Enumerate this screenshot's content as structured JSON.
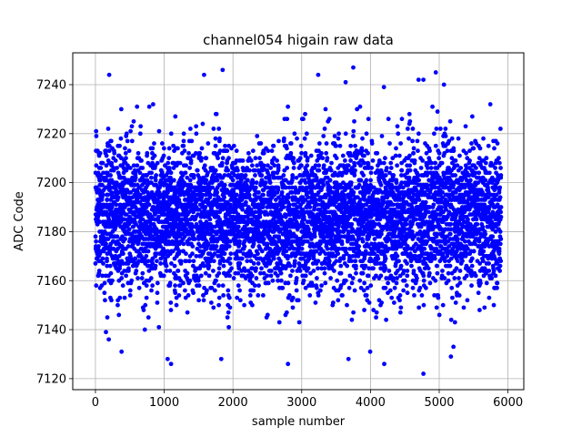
{
  "chart_data": {
    "type": "scatter",
    "title": "channel054 higain raw data",
    "xlabel": "sample number",
    "ylabel": "ADC Code",
    "xlim": [
      -330,
      6230
    ],
    "ylim": [
      7115.5,
      7253
    ],
    "x_ticks": [
      0,
      1000,
      2000,
      3000,
      4000,
      5000,
      6000
    ],
    "y_ticks": [
      7120,
      7140,
      7160,
      7180,
      7200,
      7220,
      7240
    ],
    "grid": true,
    "legend": "none",
    "series": [
      {
        "color": "#0000ff",
        "marker": "circle",
        "x_range": [
          0,
          5900
        ],
        "count": 5900,
        "mean": 7186,
        "std": 15,
        "notable_points": [
          {
            "x": 200,
            "y": 7244
          },
          {
            "x": 1850,
            "y": 7246
          },
          {
            "x": 3750,
            "y": 7247
          },
          {
            "x": 1580,
            "y": 7244
          },
          {
            "x": 4700,
            "y": 7242
          },
          {
            "x": 4770,
            "y": 7242
          },
          {
            "x": 3240,
            "y": 7244
          },
          {
            "x": 4770,
            "y": 7122
          },
          {
            "x": 1100,
            "y": 7126
          },
          {
            "x": 2800,
            "y": 7126
          },
          {
            "x": 4200,
            "y": 7126
          },
          {
            "x": 1050,
            "y": 7128
          },
          {
            "x": 1830,
            "y": 7128
          },
          {
            "x": 3680,
            "y": 7128
          },
          {
            "x": 5170,
            "y": 7129
          },
          {
            "x": 380,
            "y": 7131
          }
        ]
      }
    ]
  }
}
